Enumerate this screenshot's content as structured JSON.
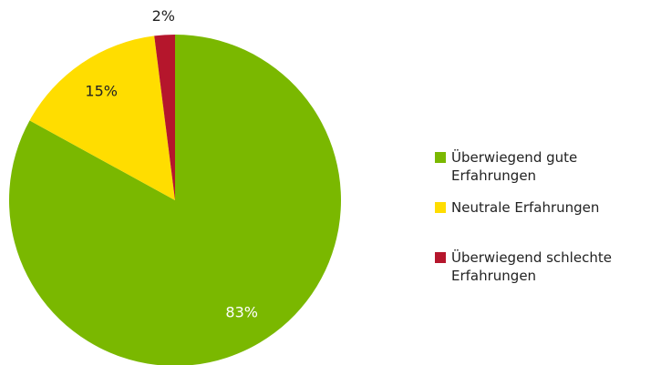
{
  "chart_data": {
    "type": "pie",
    "categories": [
      "Überwiegend gute Erfahrungen",
      "Neutrale Erfahrungen",
      "Überwiegend schlechte Erfahrungen"
    ],
    "values": [
      83,
      15,
      2
    ],
    "value_labels": [
      "83%",
      "15%",
      "2%"
    ],
    "colors": [
      "#7ab800",
      "#ffdd00",
      "#b5162c"
    ],
    "label_colors": [
      "#ffffff",
      "#222222",
      "#222222"
    ],
    "legend": "right"
  }
}
